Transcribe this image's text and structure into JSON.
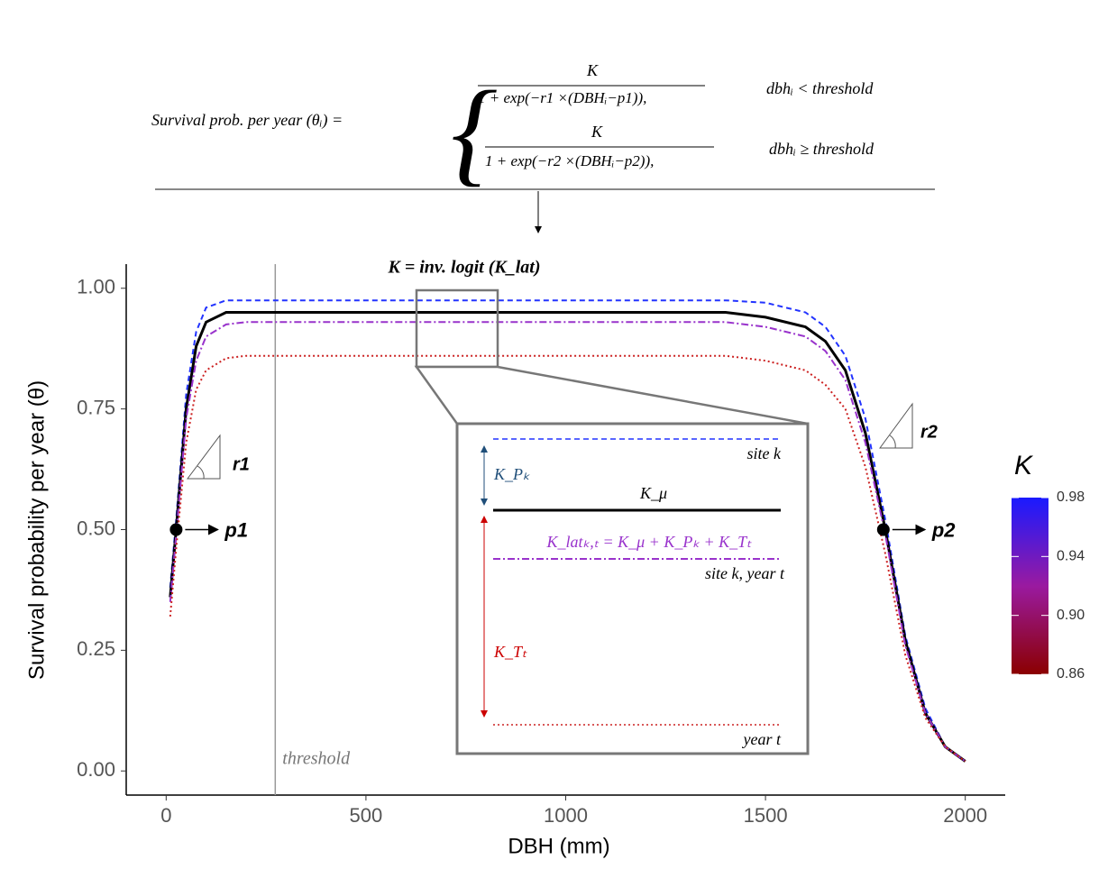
{
  "chart_data": {
    "type": "line",
    "formula": {
      "lhs": "Survival prob. per year (θᵢ) =",
      "cases": [
        {
          "numerator": "K",
          "denominator": "1 + exp(−r1 ×(DBHᵢ−p1)),",
          "condition": "dbhᵢ < threshold"
        },
        {
          "numerator": "K",
          "denominator": "1 + exp(−r2 ×(DBHᵢ−p2)),",
          "condition": "dbhᵢ ≥ threshold"
        }
      ]
    },
    "link_annotation": "K = inv. logit (K_lat)",
    "xlabel": "DBH (mm)",
    "ylabel": "Survival probability per year (θ)",
    "xlim": [
      -100,
      2100
    ],
    "ylim": [
      -0.05,
      1.05
    ],
    "xticks": [
      0,
      500,
      1000,
      1500,
      2000
    ],
    "yticks": [
      {
        "value": 0,
        "label": "0.00"
      },
      {
        "value": 0.25,
        "label": "0.25"
      },
      {
        "value": 0.5,
        "label": "0.50"
      },
      {
        "value": 0.75,
        "label": "0.75"
      },
      {
        "value": 1,
        "label": "1.00"
      }
    ],
    "x": [
      10,
      25,
      50,
      75,
      100,
      150,
      200,
      500,
      1000,
      1400,
      1500,
      1600,
      1650,
      1700,
      1750,
      1800,
      1850,
      1900,
      1950,
      2000
    ],
    "series": [
      {
        "color": "#2233ff",
        "linestyle": "dashed",
        "values": [
          0.38,
          0.52,
          0.78,
          0.91,
          0.96,
          0.975,
          0.975,
          0.975,
          0.975,
          0.975,
          0.97,
          0.95,
          0.92,
          0.86,
          0.73,
          0.52,
          0.28,
          0.13,
          0.05,
          0.02
        ]
      },
      {
        "color": "#000000",
        "linestyle": "solid",
        "values": [
          0.36,
          0.5,
          0.75,
          0.88,
          0.93,
          0.95,
          0.95,
          0.95,
          0.95,
          0.95,
          0.94,
          0.92,
          0.89,
          0.83,
          0.7,
          0.5,
          0.27,
          0.12,
          0.05,
          0.02
        ]
      },
      {
        "color": "#9933cc",
        "linestyle": "dashdot",
        "values": [
          0.35,
          0.49,
          0.73,
          0.85,
          0.9,
          0.925,
          0.93,
          0.93,
          0.93,
          0.93,
          0.92,
          0.9,
          0.87,
          0.81,
          0.68,
          0.49,
          0.26,
          0.12,
          0.05,
          0.02
        ]
      },
      {
        "color": "#cc2222",
        "linestyle": "dotted",
        "values": [
          0.32,
          0.46,
          0.68,
          0.79,
          0.83,
          0.855,
          0.86,
          0.86,
          0.86,
          0.86,
          0.85,
          0.83,
          0.8,
          0.75,
          0.63,
          0.45,
          0.24,
          0.11,
          0.05,
          0.02
        ]
      }
    ],
    "threshold": {
      "x": 273,
      "label": "threshold"
    },
    "points": [
      {
        "x": 25,
        "y": 0.5,
        "label": "p1"
      },
      {
        "x": 1795,
        "y": 0.5,
        "label": "p2"
      }
    ],
    "slope_labels": [
      "r1",
      "r2"
    ],
    "inset": {
      "site": "site k",
      "mean": "K_μ",
      "equation": "K_latₖ,ₜ = K_μ + K_Pₖ + K_Tₜ",
      "site_year": "site k, year t",
      "year": "year t",
      "site_effect": "K_Pₖ",
      "year_effect": "K_Tₜ"
    },
    "colorbar": {
      "title": "K",
      "lim": [
        0.86,
        0.98
      ],
      "ticks": [
        0.98,
        0.94,
        {
          "value": 0.9,
          "label": "0.90"
        },
        0.86
      ],
      "colors": [
        "#8b0000",
        "#9a1aa0",
        "#1a1aff"
      ]
    }
  }
}
